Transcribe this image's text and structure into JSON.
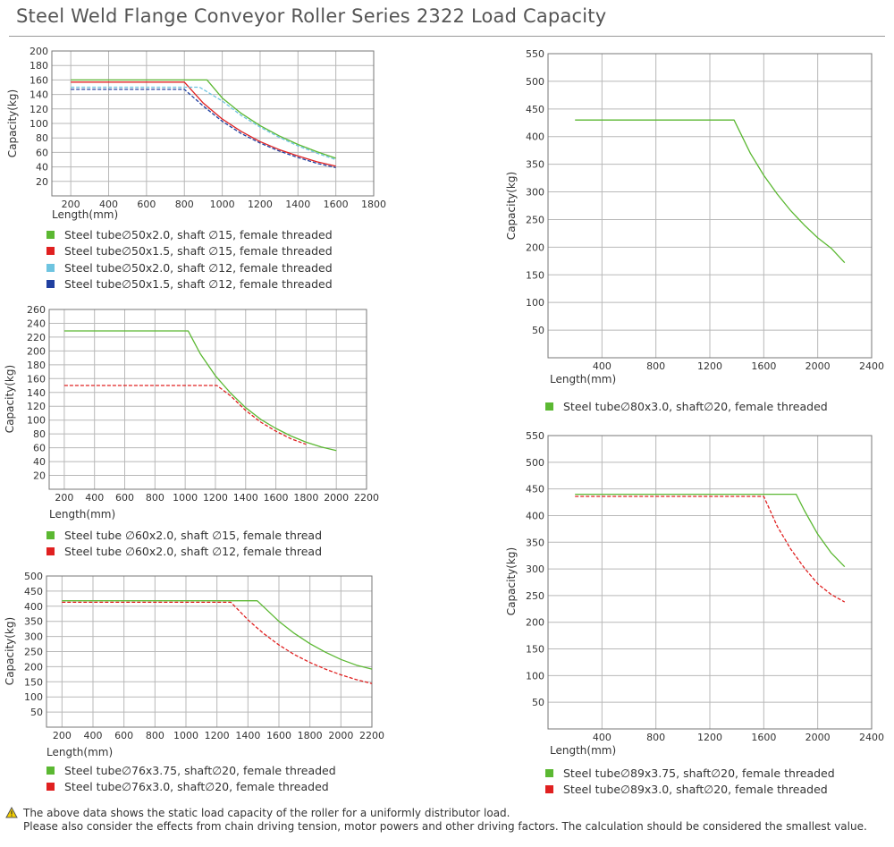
{
  "page": {
    "title": "Steel Weld Flange Conveyor Roller Series 2322 Load Capacity"
  },
  "footnote": {
    "line1": "The above data shows the static load capacity of the roller for a uniformly distributor load.",
    "line2": "Please also consider the effects from chain driving tension, motor powers and other driving factors. The calculation should be considered the smallest value."
  },
  "chart_data": [
    {
      "id": "c1",
      "type": "line",
      "xlabel": "Length(mm)",
      "ylabel": "Capacity(kg)",
      "xlim": [
        100,
        1800
      ],
      "ylim": [
        0,
        200
      ],
      "xticks": [
        200,
        400,
        600,
        800,
        1000,
        1200,
        1400,
        1600,
        1800
      ],
      "yticks": [
        20,
        40,
        60,
        80,
        100,
        120,
        140,
        160,
        180,
        200
      ],
      "grid": true,
      "series": [
        {
          "name": "Steel tube∅50x2.0, shaft ∅15, female threaded",
          "color": "#5bb832",
          "dash": false,
          "x": [
            200,
            920,
            1000,
            1100,
            1200,
            1300,
            1400,
            1500,
            1600
          ],
          "y": [
            160,
            160,
            135,
            114,
            97,
            83,
            71,
            61,
            52
          ]
        },
        {
          "name": "Steel tube∅50x1.5, shaft ∅15, female threaded",
          "color": "#e02020",
          "dash": false,
          "x": [
            200,
            800,
            900,
            1000,
            1100,
            1200,
            1300,
            1400,
            1500,
            1600
          ],
          "y": [
            157,
            157,
            128,
            106,
            89,
            75,
            64,
            55,
            47,
            41
          ]
        },
        {
          "name": "Steel tube∅50x2.0, shaft ∅12, female threaded",
          "color": "#6ec4e0",
          "dash": true,
          "x": [
            200,
            880,
            1000,
            1100,
            1200,
            1300,
            1400,
            1500,
            1600
          ],
          "y": [
            150,
            150,
            131,
            111,
            95,
            81,
            69,
            59,
            50
          ]
        },
        {
          "name": "Steel tube∅50x1.5, shaft ∅12, female threaded",
          "color": "#2040a0",
          "dash": true,
          "x": [
            200,
            800,
            900,
            1000,
            1100,
            1200,
            1300,
            1400,
            1500,
            1600
          ],
          "y": [
            147,
            147,
            124,
            103,
            86,
            73,
            62,
            53,
            45,
            39
          ]
        }
      ]
    },
    {
      "id": "c2",
      "type": "line",
      "xlabel": "Length(mm)",
      "ylabel": "Capacity(kg)",
      "xlim": [
        100,
        2200
      ],
      "ylim": [
        0,
        260
      ],
      "xticks": [
        200,
        400,
        600,
        800,
        1000,
        1200,
        1400,
        1600,
        1800,
        2000,
        2200
      ],
      "yticks": [
        20,
        40,
        60,
        80,
        100,
        120,
        140,
        160,
        180,
        200,
        220,
        240,
        260
      ],
      "grid": true,
      "series": [
        {
          "name": "Steel tube ∅60x2.0, shaft  ∅15, female thread",
          "color": "#5bb832",
          "dash": false,
          "x": [
            200,
            1020,
            1100,
            1200,
            1300,
            1400,
            1500,
            1600,
            1700,
            1800,
            1900,
            2000
          ],
          "y": [
            229,
            229,
            196,
            164,
            139,
            118,
            101,
            88,
            77,
            68,
            61,
            56
          ]
        },
        {
          "name": "Steel tube ∅60x2.0, shaft  ∅12, female thread",
          "color": "#e02020",
          "dash": true,
          "x": [
            200,
            1210,
            1300,
            1400,
            1500,
            1600,
            1700,
            1800
          ],
          "y": [
            150,
            150,
            135,
            114,
            97,
            84,
            73,
            65
          ]
        }
      ]
    },
    {
      "id": "c3",
      "type": "line",
      "xlabel": "Length(mm)",
      "ylabel": "Capacity(kg)",
      "xlim": [
        100,
        2200
      ],
      "ylim": [
        0,
        500
      ],
      "xticks": [
        200,
        400,
        600,
        800,
        1000,
        1200,
        1400,
        1600,
        1800,
        2000,
        2200
      ],
      "yticks": [
        50,
        100,
        150,
        200,
        250,
        300,
        350,
        400,
        450,
        500
      ],
      "grid": true,
      "series": [
        {
          "name": "Steel tube∅76x3.75, shaft∅20, female threaded",
          "color": "#5bb832",
          "dash": false,
          "x": [
            200,
            1460,
            1600,
            1700,
            1800,
            1900,
            2000,
            2100,
            2200
          ],
          "y": [
            418,
            418,
            350,
            310,
            276,
            248,
            224,
            205,
            192
          ]
        },
        {
          "name": "Steel tube∅76x3.0, shaft∅20, female threaded",
          "color": "#e02020",
          "dash": true,
          "x": [
            200,
            1290,
            1400,
            1500,
            1600,
            1700,
            1800,
            1900,
            2000,
            2100,
            2200
          ],
          "y": [
            413,
            413,
            355,
            310,
            272,
            240,
            214,
            192,
            173,
            157,
            144
          ]
        }
      ]
    },
    {
      "id": "c4",
      "type": "line",
      "xlabel": "Length(mm)",
      "ylabel": "Capacity(kg)",
      "xlim": [
        0,
        2400
      ],
      "ylim": [
        0,
        550
      ],
      "xticks": [
        400,
        800,
        1200,
        1600,
        2000,
        2400
      ],
      "yticks": [
        50,
        100,
        150,
        200,
        250,
        300,
        350,
        400,
        450,
        500,
        550
      ],
      "grid": true,
      "series": [
        {
          "name": "Steel tube∅80x3.0, shaft∅20, female threaded",
          "color": "#5bb832",
          "dash": false,
          "x": [
            200,
            1380,
            1500,
            1600,
            1700,
            1800,
            1900,
            2000,
            2100,
            2200
          ],
          "y": [
            430,
            430,
            370,
            330,
            296,
            266,
            240,
            217,
            198,
            172
          ]
        }
      ]
    },
    {
      "id": "c5",
      "type": "line",
      "xlabel": "Length(mm)",
      "ylabel": "Capacity(kg)",
      "xlim": [
        0,
        2400
      ],
      "ylim": [
        0,
        550
      ],
      "xticks": [
        400,
        800,
        1200,
        1600,
        2000,
        2400
      ],
      "yticks": [
        50,
        100,
        150,
        200,
        250,
        300,
        350,
        400,
        450,
        500,
        550
      ],
      "grid": true,
      "series": [
        {
          "name": "Steel tube∅89x3.75, shaft∅20, female threaded",
          "color": "#5bb832",
          "dash": false,
          "x": [
            200,
            1840,
            1900,
            2000,
            2100,
            2200
          ],
          "y": [
            440,
            440,
            410,
            365,
            330,
            304
          ]
        },
        {
          "name": "Steel tube∅89x3.0, shaft∅20, female threaded",
          "color": "#e02020",
          "dash": true,
          "x": [
            200,
            1600,
            1700,
            1800,
            1900,
            2000,
            2100,
            2200
          ],
          "y": [
            436,
            436,
            380,
            337,
            302,
            272,
            252,
            238
          ]
        }
      ]
    }
  ]
}
